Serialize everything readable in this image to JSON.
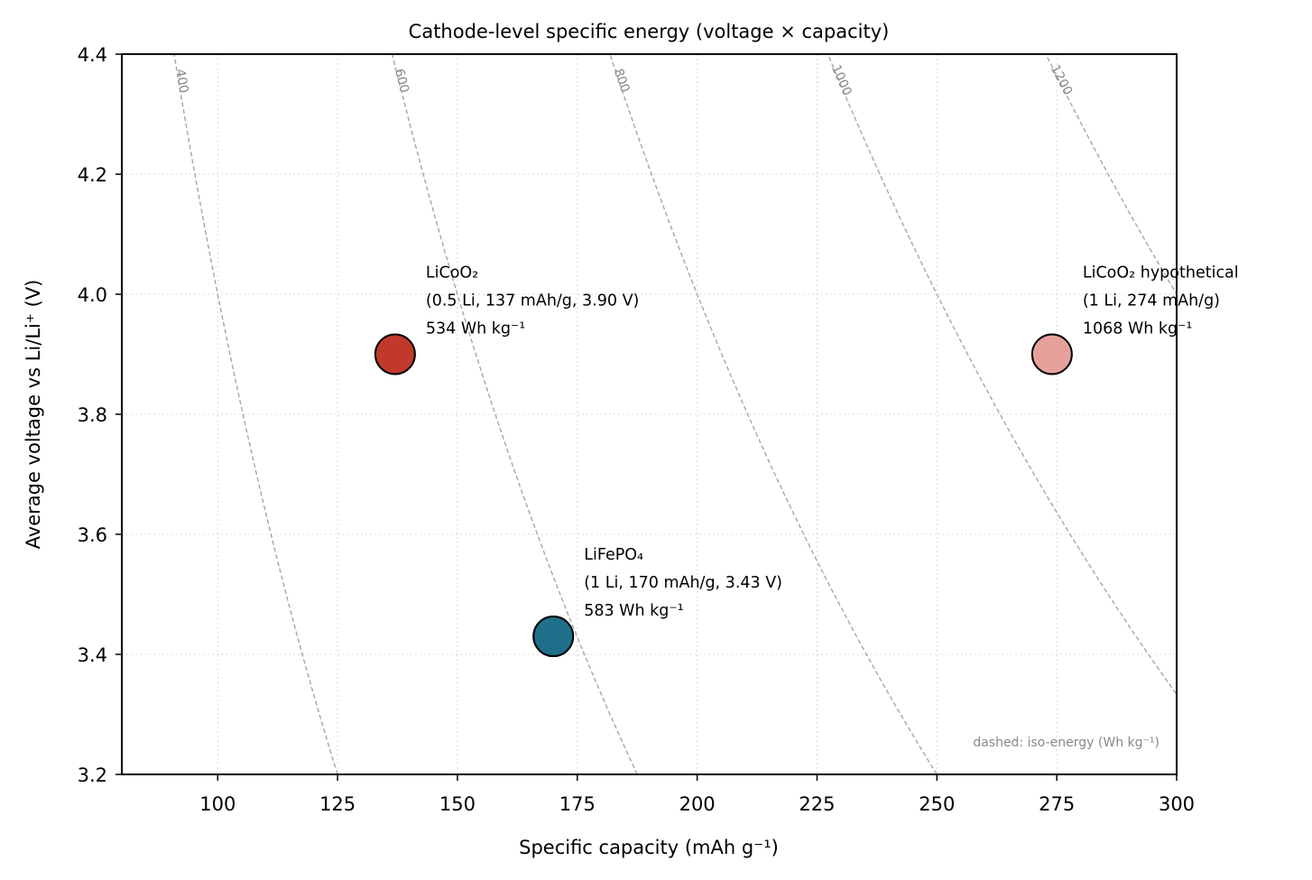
{
  "chart_data": {
    "type": "scatter",
    "title": "Cathode-level specific energy (voltage × capacity)",
    "xlabel": "Specific capacity  (mAh g⁻¹)",
    "ylabel": "Average voltage vs Li/Li⁺  (V)",
    "xlim": [
      80,
      300
    ],
    "ylim": [
      3.2,
      4.4
    ],
    "xticks": [
      100,
      125,
      150,
      175,
      200,
      225,
      250,
      275,
      300
    ],
    "yticks": [
      3.2,
      3.4,
      3.6,
      3.8,
      4.0,
      4.2,
      4.4
    ],
    "grid": true,
    "points": [
      {
        "x": 137,
        "y": 3.9,
        "color": "#c0392b",
        "lines": [
          "LiCoO₂",
          "(0.5 Li, 137 mAh/g, 3.90 V)",
          "534 Wh kg⁻¹"
        ]
      },
      {
        "x": 170,
        "y": 3.43,
        "color": "#1f6f8b",
        "lines": [
          "LiFePO₄",
          "(1 Li, 170 mAh/g, 3.43 V)",
          "583 Wh kg⁻¹"
        ]
      },
      {
        "x": 274,
        "y": 3.9,
        "color": "#e6a19b",
        "lines": [
          "LiCoO₂ hypothetical",
          "(1 Li, 274 mAh/g)",
          "1068 Wh kg⁻¹"
        ]
      }
    ],
    "iso_energy": [
      400,
      600,
      800,
      1000,
      1200
    ],
    "iso_energy_labels": [
      "400",
      "600",
      "800",
      "1000",
      "1200"
    ],
    "note": "dashed: iso-energy (Wh kg⁻¹)"
  }
}
